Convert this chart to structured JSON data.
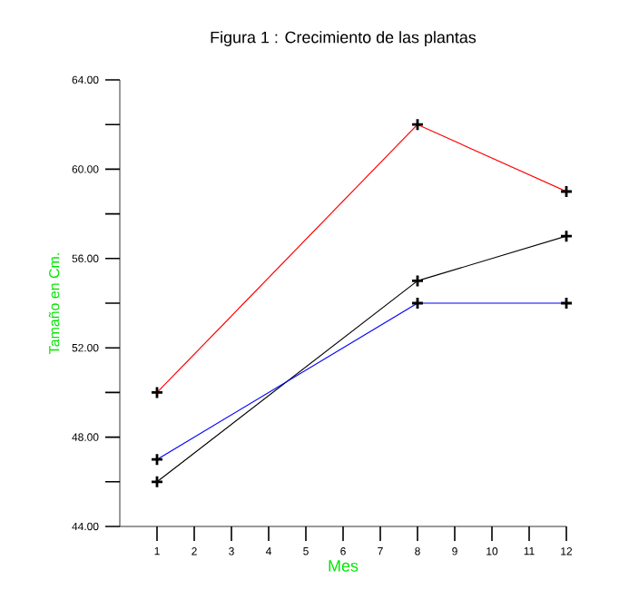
{
  "chart_data": {
    "type": "line",
    "title": "Figura 1 : Crecimiento de las plantas",
    "xlabel": "Mes",
    "ylabel": "Tamaño en Cm.",
    "xlim": [
      0,
      12
    ],
    "xticks": [
      1,
      2,
      3,
      4,
      5,
      6,
      7,
      8,
      9,
      10,
      11,
      12
    ],
    "ylim": [
      44,
      64
    ],
    "yticks": [
      {
        "value": 44,
        "label": "44.00"
      },
      {
        "value": 46,
        "label": null
      },
      {
        "value": 48,
        "label": "48.00"
      },
      {
        "value": 50,
        "label": null
      },
      {
        "value": 52,
        "label": "52.00"
      },
      {
        "value": 54,
        "label": null
      },
      {
        "value": 56,
        "label": "56.00"
      },
      {
        "value": 58,
        "label": null
      },
      {
        "value": 60,
        "label": "60.00"
      },
      {
        "value": 62,
        "label": null
      },
      {
        "value": 64,
        "label": "64.00"
      }
    ],
    "grid": false,
    "marker": "cross",
    "line_style": "solid",
    "x": [
      1,
      8,
      12
    ],
    "series": [
      {
        "color": "#ff0000",
        "values": [
          50,
          62,
          59
        ]
      },
      {
        "color": "#000000",
        "values": [
          46,
          55,
          57
        ]
      },
      {
        "color": "#0000ff",
        "values": [
          47,
          54,
          54
        ]
      }
    ]
  }
}
